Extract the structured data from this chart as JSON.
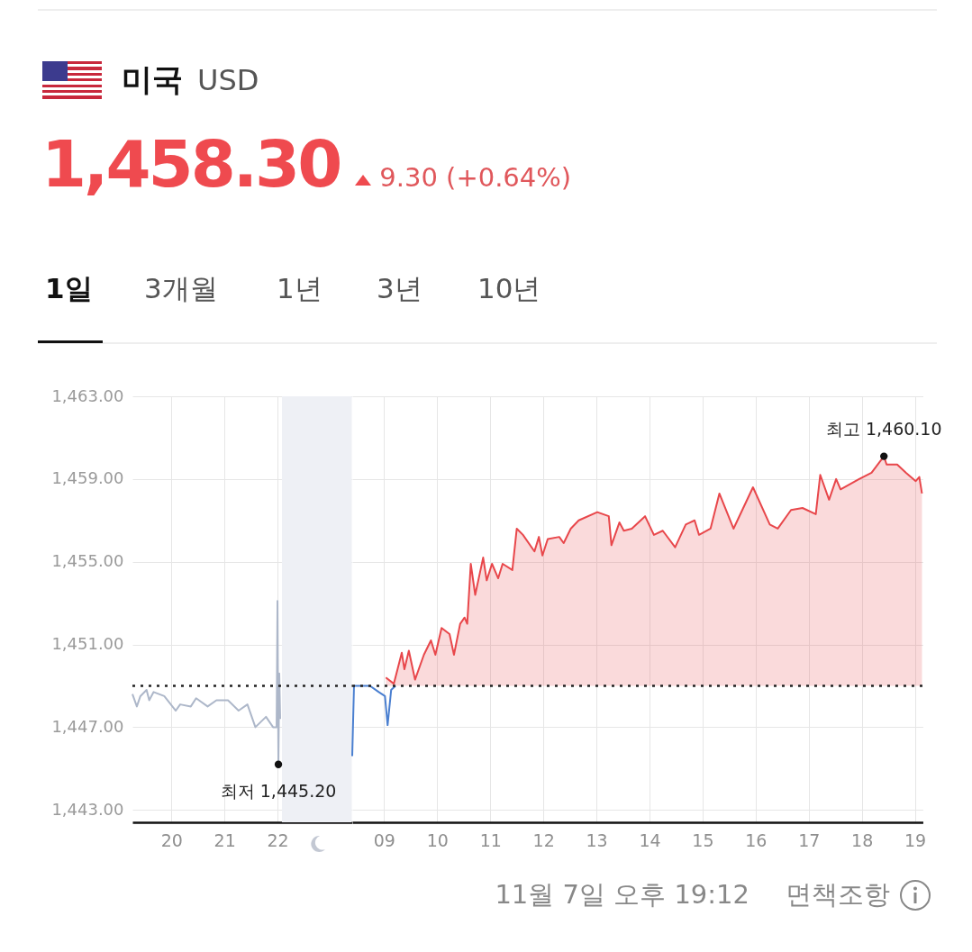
{
  "chart_data": [
    {
      "type": "line",
      "title": "미국",
      "subtitle": "USD",
      "annotations": [
        "1,458.30",
        "9.30 (+0.64%)",
        "1일",
        "3개월",
        "1년",
        "3년",
        "10년",
        "11월 7일 오후 19:12",
        "면책조항",
        {
          "text": "최저 1,445.20",
          "x": "--11-06T22:01",
          "y": 1445.2
        }
      ],
      "xlim": [
        "--11-06T19:16",
        "--11-06T23:24"
      ],
      "xticks": [
        {
          "value": "--11-06T20:00",
          "label": "20"
        },
        {
          "value": "--11-06T21:00",
          "label": "21"
        },
        {
          "value": "--11-06T22:00",
          "label": "22"
        }
      ],
      "ylim": [
        1442.4,
        1463
      ],
      "yticks": [
        {
          "value": 1443,
          "label": "1,443.00"
        },
        {
          "value": 1447,
          "label": "1,447.00"
        },
        {
          "value": 1451,
          "label": "1,451.00"
        },
        {
          "value": 1455,
          "label": "1,455.00"
        },
        {
          "value": 1459,
          "label": "1,459.00"
        },
        {
          "value": 1463,
          "label": "1,463.00"
        }
      ],
      "grid": true,
      "series": [
        {
          "color": "#adb7c9",
          "x": [
            "--11-06T19:16",
            "--11-06T19:21",
            "--11-06T19:25",
            "--11-06T19:32",
            "--11-06T19:35",
            "--11-06T19:40",
            "--11-06T19:52",
            "--11-06T20:05",
            "--11-06T20:10",
            "--11-06T20:22",
            "--11-06T20:28",
            "--11-06T20:41",
            "--11-06T20:51",
            "--11-06T21:04",
            "--11-06T21:16",
            "--11-06T21:26",
            "--11-06T21:35",
            "--11-06T21:47",
            "--11-06T21:55",
            "--11-06T21:59",
            "--11-06T22:00",
            "--11-06T22:01",
            "--11-06T22:02",
            "--11-06T22:03"
          ],
          "values": [
            1448.6,
            1448.0,
            1448.5,
            1448.8,
            1448.3,
            1448.7,
            1448.5,
            1447.8,
            1448.1,
            1448.0,
            1448.4,
            1448.0,
            1448.3,
            1448.3,
            1447.8,
            1448.1,
            1447.0,
            1447.5,
            1447.0,
            1447.0,
            1453.1,
            1445.2,
            1449.6,
            1447.4
          ]
        }
      ],
      "ref_lines": [
        {
          "axis": "y",
          "value": 1449.0,
          "color": "#222222",
          "line_style": "dotted"
        }
      ],
      "bands": [
        {
          "axis": "x",
          "from": "--11-06T22:05",
          "to": "--11-06T23:24",
          "color": "#eef0f5"
        }
      ]
    },
    {
      "type": "area",
      "annotations": [
        {
          "text": "최고 1,460.10",
          "x": "--11-07T18:25",
          "y": 1460.1
        }
      ],
      "xlim": [
        "--11-07T08:24",
        "--11-07T19:09"
      ],
      "xticks": [
        {
          "value": "--11-07T09:00",
          "label": "09"
        },
        {
          "value": "--11-07T10:00",
          "label": "10"
        },
        {
          "value": "--11-07T11:00",
          "label": "11"
        },
        {
          "value": "--11-07T12:00",
          "label": "12"
        },
        {
          "value": "--11-07T13:00",
          "label": "13"
        },
        {
          "value": "--11-07T14:00",
          "label": "14"
        },
        {
          "value": "--11-07T15:00",
          "label": "15"
        },
        {
          "value": "--11-07T16:00",
          "label": "16"
        },
        {
          "value": "--11-07T17:00",
          "label": "17"
        },
        {
          "value": "--11-07T18:00",
          "label": "18"
        },
        {
          "value": "--11-07T19:00",
          "label": "19"
        }
      ],
      "ylim": [
        1442.4,
        1463
      ],
      "yticks": [
        1443,
        1447,
        1451,
        1455,
        1459,
        1463
      ],
      "tick_labels": "x",
      "grid": true,
      "series": [
        {
          "type": "line",
          "color": "#4a7fd0",
          "x": [
            "--11-07T08:24",
            "--11-07T08:26",
            "--11-07T08:44",
            "--11-07T08:54",
            "--11-07T09:01",
            "--11-07T09:04",
            "--11-07T09:08",
            "--11-07T09:13"
          ],
          "values": [
            1445.6,
            1449.0,
            1449.0,
            1448.7,
            1448.5,
            1447.1,
            1448.8,
            1449.0
          ]
        },
        {
          "color": "#e8474b",
          "x": [
            "--11-07T09:02",
            "--11-07T09:11",
            "--11-07T09:20",
            "--11-07T09:23",
            "--11-07T09:28",
            "--11-07T09:35",
            "--11-07T09:45",
            "--11-07T09:53",
            "--11-07T09:58",
            "--11-07T10:05",
            "--11-07T10:14",
            "--11-07T10:19",
            "--11-07T10:26",
            "--11-07T10:31",
            "--11-07T10:34",
            "--11-07T10:38",
            "--11-07T10:43",
            "--11-07T10:52",
            "--11-07T10:56",
            "--11-07T11:02",
            "--11-07T11:09",
            "--11-07T11:14",
            "--11-07T11:25",
            "--11-07T11:30",
            "--11-07T11:37",
            "--11-07T11:50",
            "--11-07T11:55",
            "--11-07T11:59",
            "--11-07T12:05",
            "--11-07T12:18",
            "--11-07T12:23",
            "--11-07T12:31",
            "--11-07T12:40",
            "--11-07T13:01",
            "--11-07T13:14",
            "--11-07T13:17",
            "--11-07T13:26",
            "--11-07T13:31",
            "--11-07T13:40",
            "--11-07T13:55",
            "--11-07T14:05",
            "--11-07T14:15",
            "--11-07T14:29",
            "--11-07T14:41",
            "--11-07T14:51",
            "--11-07T14:56",
            "--11-07T15:09",
            "--11-07T15:19",
            "--11-07T15:35",
            "--11-07T15:57",
            "--11-07T16:16",
            "--11-07T16:25",
            "--11-07T16:40",
            "--11-07T16:53",
            "--11-07T17:08",
            "--11-07T17:13",
            "--11-07T17:23",
            "--11-07T17:31",
            "--11-07T17:36",
            "--11-07T17:57",
            "--11-07T18:11",
            "--11-07T18:25",
            "--11-07T18:28",
            "--11-07T18:40",
            "--11-07T18:50",
            "--11-07T19:01",
            "--11-07T19:05",
            "--11-07T19:08"
          ],
          "values": [
            1449.4,
            1449.1,
            1450.6,
            1449.8,
            1450.7,
            1449.3,
            1450.5,
            1451.2,
            1450.5,
            1451.8,
            1451.5,
            1450.5,
            1452.0,
            1452.3,
            1452.0,
            1454.9,
            1453.4,
            1455.2,
            1454.1,
            1454.9,
            1454.2,
            1454.9,
            1454.6,
            1456.6,
            1456.3,
            1455.5,
            1456.2,
            1455.3,
            1456.1,
            1456.2,
            1455.9,
            1456.6,
            1457.0,
            1457.4,
            1457.2,
            1455.8,
            1456.9,
            1456.5,
            1456.6,
            1457.2,
            1456.3,
            1456.5,
            1455.7,
            1456.8,
            1457.0,
            1456.3,
            1456.6,
            1458.3,
            1456.6,
            1458.6,
            1456.8,
            1456.6,
            1457.5,
            1457.6,
            1457.3,
            1459.2,
            1458.0,
            1459.0,
            1458.5,
            1459.0,
            1459.3,
            1460.1,
            1459.7,
            1459.7,
            1459.3,
            1458.9,
            1459.1,
            1458.3
          ]
        }
      ],
      "ref_lines": [
        {
          "axis": "y",
          "value": 1449.0,
          "color": "#222222",
          "line_style": "dotted"
        }
      ]
    }
  ]
}
